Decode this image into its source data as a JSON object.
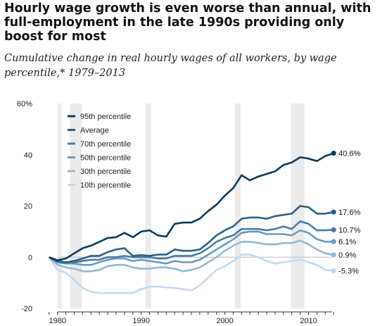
{
  "title": "Hourly wage growth is even worse than annual, with full-employment in the late 1990s providing only boost for most",
  "subtitle": "Cumulative change in real hourly wages of all workers, by wage percentile,* 1979–2013",
  "chart_data": {
    "type": "line",
    "ylim": [
      -20,
      60
    ],
    "yticks": [
      -20,
      0,
      20,
      40,
      60
    ],
    "ytick_labels": [
      "-20",
      "0",
      "20",
      "40",
      "60%"
    ],
    "xlim": [
      1977.5,
      2014.5
    ],
    "xticks": [
      1980,
      1990,
      2000,
      2010
    ],
    "legend_position": "top-left",
    "grid": false,
    "recessions": [
      [
        1980,
        1980.5
      ],
      [
        1981.5,
        1982.9
      ],
      [
        1990.5,
        1991.2
      ],
      [
        2001.2,
        2001.9
      ],
      [
        2007.9,
        2009.5
      ]
    ],
    "x": [
      1979,
      1980,
      1981,
      1982,
      1983,
      1984,
      1985,
      1986,
      1987,
      1988,
      1989,
      1990,
      1991,
      1992,
      1993,
      1994,
      1995,
      1996,
      1997,
      1998,
      1999,
      2000,
      2001,
      2002,
      2003,
      2004,
      2005,
      2006,
      2007,
      2008,
      2009,
      2010,
      2011,
      2012,
      2013
    ],
    "series": [
      {
        "name": "95th percentile",
        "color": "#0d3a5c",
        "end_label": "40.6%",
        "values": [
          0,
          -1.2,
          -0.5,
          1.5,
          3.5,
          4.5,
          6,
          7.5,
          7.8,
          9.5,
          7.8,
          10,
          10.5,
          8.5,
          8,
          13,
          13.5,
          13.5,
          15,
          18,
          20.5,
          24,
          27,
          32,
          30,
          31.5,
          32.5,
          33.5,
          36,
          37,
          39,
          38.5,
          37.5,
          39.5,
          40.6
        ]
      },
      {
        "name": "Average",
        "color": "#2d5f86",
        "end_label": "17.6%",
        "values": [
          0,
          -1.5,
          -2,
          -1.5,
          -0.5,
          0.5,
          0.5,
          2,
          3,
          3.5,
          0.5,
          0.8,
          0.5,
          1,
          1,
          3,
          2.5,
          2.5,
          3,
          5.5,
          8.5,
          10.5,
          12,
          15,
          15.5,
          15.5,
          15,
          16,
          16.5,
          17,
          20,
          19.5,
          17,
          17,
          17.6
        ]
      },
      {
        "name": "70th percentile",
        "color": "#4a7ba3",
        "end_label": "10.7%",
        "values": [
          0,
          -1.8,
          -2.2,
          -2,
          -1.5,
          -1,
          -1,
          0,
          0,
          0.5,
          0,
          0,
          0,
          -0.5,
          -0.5,
          0.5,
          0.5,
          0.5,
          1.5,
          3.5,
          6,
          7.5,
          8.5,
          11,
          11,
          11,
          10.5,
          11,
          12,
          11,
          14,
          13,
          10.5,
          10.5,
          10.7
        ]
      },
      {
        "name": "50th percentile",
        "color": "#6c9ac0",
        "end_label": "6.1%",
        "values": [
          0,
          -2,
          -2.5,
          -2.5,
          -3,
          -3,
          -2,
          -1,
          -0.5,
          -0.5,
          -1.5,
          -1,
          -1.5,
          -2,
          -2.5,
          -1.5,
          -2,
          -2,
          -1,
          1,
          3,
          5,
          7,
          9.5,
          10,
          10,
          9,
          9,
          9,
          8.5,
          10.5,
          9.5,
          7,
          6,
          6.1
        ]
      },
      {
        "name": "30th percentile",
        "color": "#94b8d6",
        "end_label": "0.9%",
        "values": [
          0,
          -3,
          -4,
          -4.5,
          -5.5,
          -5.5,
          -5,
          -3.5,
          -3,
          -3,
          -4,
          -4.5,
          -4.5,
          -4,
          -4,
          -4.5,
          -5.5,
          -5,
          -4,
          -2,
          0,
          2.5,
          4.5,
          6,
          6,
          5.5,
          5,
          5,
          5.5,
          5.5,
          6.5,
          5,
          3,
          1.5,
          0.9
        ]
      },
      {
        "name": "10th percentile",
        "color": "#c5daee",
        "end_label": "-5.3%",
        "values": [
          0,
          -5,
          -6,
          -9,
          -12,
          -13.5,
          -14,
          -14,
          -14,
          -14,
          -14,
          -12.5,
          -11.5,
          -11.5,
          -11.8,
          -12,
          -12.5,
          -13,
          -11,
          -8,
          -5,
          -3.5,
          -1.5,
          1,
          1,
          0,
          -1.5,
          -2.5,
          -2,
          -1.5,
          -1,
          -2,
          -3,
          -5,
          -5.3
        ]
      }
    ]
  }
}
